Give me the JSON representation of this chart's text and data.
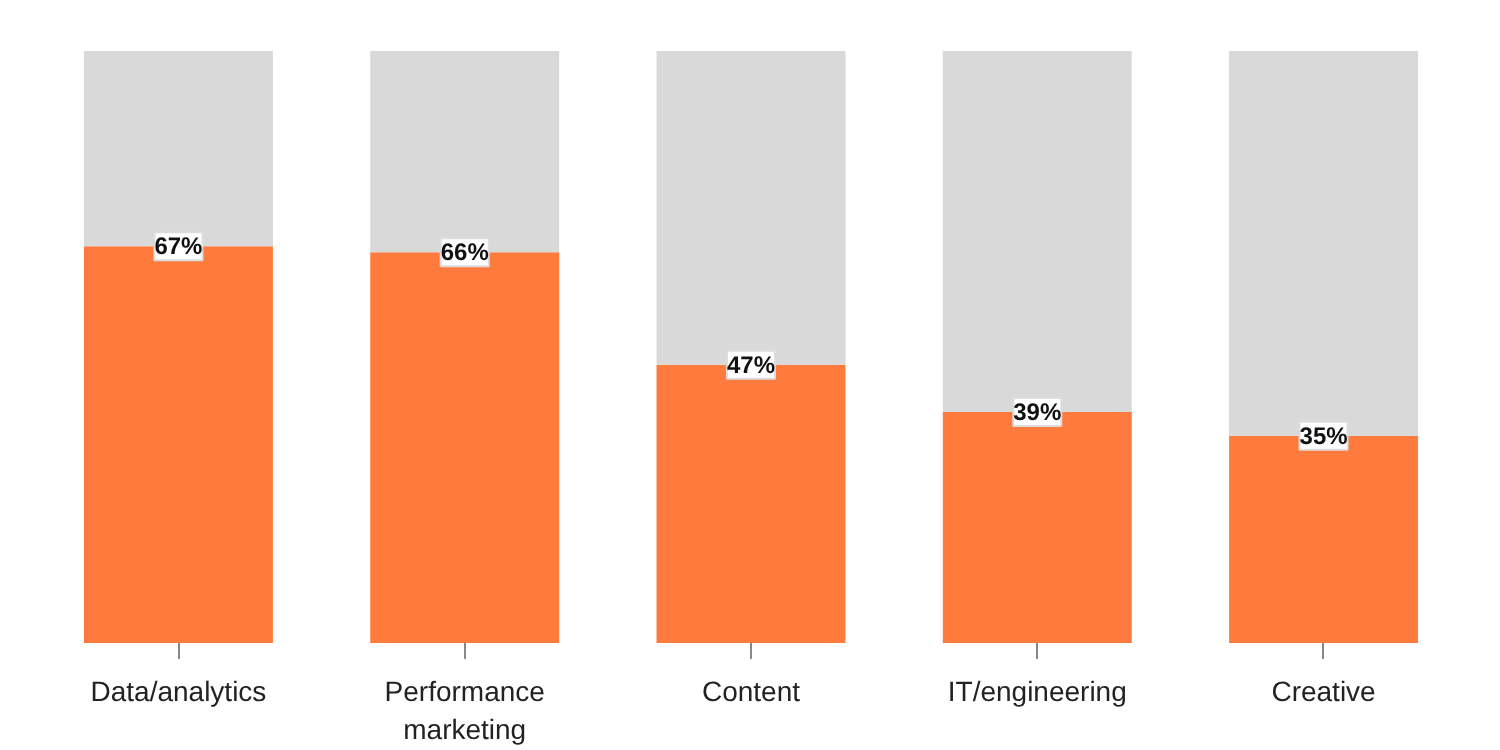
{
  "chart_data": {
    "type": "bar",
    "stacked": true,
    "categories": [
      "Data/analytics",
      "Performance marketing",
      "Content",
      "IT/engineering",
      "Creative"
    ],
    "ylim": [
      0,
      100
    ],
    "tick_labels": "x",
    "series": [
      {
        "color": "#ff7a3d",
        "values": [
          67,
          66,
          47,
          39,
          35
        ],
        "value_labels": [
          "67%",
          "66%",
          "47%",
          "39%",
          "35%"
        ]
      },
      {
        "color": "#d9d9d9",
        "values": [
          33,
          34,
          53,
          61,
          65
        ]
      }
    ]
  }
}
